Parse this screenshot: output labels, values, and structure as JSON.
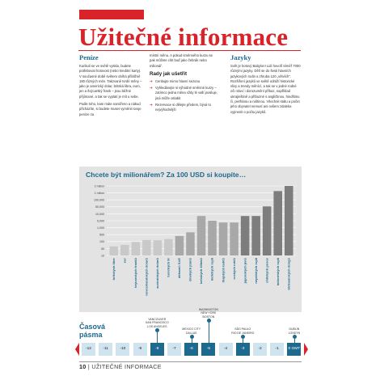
{
  "title": "Užitečné informace",
  "colors": {
    "accent": "#d8232a",
    "blue": "#1e6a8f",
    "bar": "#c4c4c4",
    "bar_dark": "#7d7d7d"
  },
  "column1": {
    "heading": "Peníze",
    "paragraphs": [
      "Kurikuli se ve světě vyskla, budete potřebovat hotovost (nebo kreditní karty). V současné době světem obíhá přibližně 180 různých mén. Takzvaně tvrdé měny – jako je americký dolar, britská libra, euro, jen a švýcarský frank – jsou běžné přijímané, a tak se vyplatí je mít u sebe.",
      "Podle toho, kam máte namířeno a nákud přicházíte, si budete muset vyměnit svoje peníze za"
    ]
  },
  "column2": {
    "intro": "místní měnu. A pokud směnného kurzu se pak můžete cítit buď jako žebrák nebo milionář.",
    "subheading": "Rady jak ušetřit",
    "tips": [
      "Cenbujte mimo hlavní sezonu",
      "Vyhledávejte si výhodné směnné kurzy – zatímco jedna měna vždy lé vallí posiluje, jiná může oslabit",
      "Rezervace si dělejte předem, bývá to nejvýhodnější"
    ]
  },
  "column3": {
    "heading": "Jazyky",
    "paragraph": "Svět je hotový Babylon! Lidi hovoří téměř 7000 různými jazyky. Dělí se do šesti hlavních jazykových rodin a zhruba 120 „větvích“. Rozšíření jazyků ve světě odráží historické vlivy a trendy měnící, a tak se v jedné rodné oči mluví i dorozumění příkaz, například ukrajinštině a přibuzné s angličtinou, hindštinu či, perštinou a ruštinou. Všechnit státu a počet jeho obyvatel nemusí ani ovšem zdaleka vyjmenit o počtu jazyků."
  },
  "chart_data": {
    "type": "bar",
    "title": "Chcete být milionářem? Za 100 USD si koupíte…",
    "categories": [
      "britských liber",
      "eur",
      "švýcarských franků",
      "novozélandských dolarů",
      "australských dolarů",
      "tureckých lir",
      "dirhamů SAE",
      "čínských jüanů",
      "keňských šilinků",
      "indických rupií",
      "thajských bahtů",
      "ruských rublů",
      "japonských jenů",
      "nepálských rupií",
      "chilských pesos",
      "indonéských rupií",
      "vietnamských dongů"
    ],
    "values": [
      62,
      72,
      97,
      145,
      135,
      180,
      367,
      630,
      8000,
      5000,
      3300,
      3300,
      8000,
      8000,
      52000,
      1200000,
      2100000
    ],
    "bar_heights_note_excluded": true,
    "ytick_labels": [
      "2 milion",
      "1 milion",
      "100,000",
      "50,000",
      "10,000",
      "5,000",
      "1,000",
      "500",
      "100",
      "50",
      "10"
    ],
    "ytick_values": [
      2000000,
      1000000,
      100000,
      50000,
      10000,
      5000,
      1000,
      500,
      100,
      50,
      10
    ],
    "yscale": "log",
    "grid": true
  },
  "timezones": {
    "title_line1": "Časová",
    "title_line2": "pásma",
    "cells": [
      "-12",
      "-11",
      "-10",
      "-9",
      "-8",
      "-7",
      "-6",
      "-5",
      "-4",
      "-3",
      "-2",
      "-1",
      "0 GMT"
    ],
    "cities": [
      {
        "zone": "-8",
        "label": "VANCOUVER\nSAN FRANCISCO\nLOS ANGELES"
      },
      {
        "zone": "-6",
        "label": "MEXICO CITY\nDALLAS"
      },
      {
        "zone": "-5",
        "label": "WASHINGTON\nNEW YORK\nBOSTON"
      },
      {
        "zone": "-3",
        "label": "SÃO PAULO\nRIO DE JANEIRO"
      },
      {
        "zone": "0 GMT",
        "label": "DUBLIN\nLONDÝN"
      }
    ]
  },
  "footer": {
    "page": "10",
    "section": "UŽITEČNÉ INFORMACE"
  }
}
